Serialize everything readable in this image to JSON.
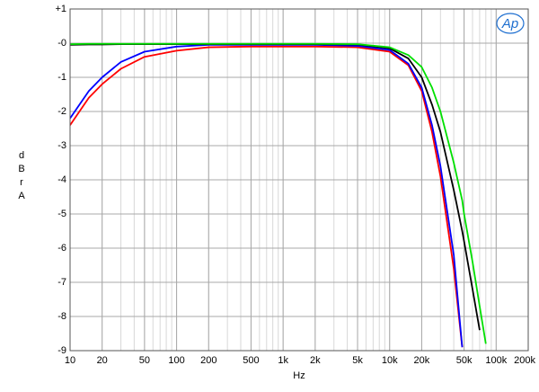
{
  "chart_data": {
    "type": "line",
    "logo": "Ap",
    "xlabel": "Hz",
    "ylabel": "dBr A",
    "xscale": "log",
    "grid": true,
    "xlim": [
      10,
      200000
    ],
    "ylim": [
      -9,
      1
    ],
    "xticks": [
      10,
      20,
      50,
      100,
      200,
      500,
      {
        "value": 1000,
        "label": "1k"
      },
      {
        "value": 2000,
        "label": "2k"
      },
      {
        "value": 5000,
        "label": "5k"
      },
      {
        "value": 10000,
        "label": "10k"
      },
      {
        "value": 20000,
        "label": "20k"
      },
      {
        "value": 50000,
        "label": "50k"
      },
      {
        "value": 100000,
        "label": "100k"
      },
      {
        "value": 200000,
        "label": "200k"
      }
    ],
    "yticks": [
      {
        "value": 1,
        "label": "+1"
      },
      {
        "value": 0,
        "label": "-0"
      },
      -1,
      -2,
      -3,
      -4,
      -5,
      -6,
      -7,
      -8,
      -9
    ],
    "x": [
      10,
      15,
      20,
      30,
      50,
      100,
      200,
      500,
      1000,
      2000,
      5000,
      10000,
      15000,
      20000,
      25000,
      30000,
      40000,
      48000,
      50000,
      60000,
      70000,
      80000
    ],
    "series": [
      {
        "color": "#ff0000",
        "values": [
          -2.4,
          -1.6,
          -1.2,
          -0.75,
          -0.4,
          -0.22,
          -0.12,
          -0.1,
          -0.1,
          -0.1,
          -0.12,
          -0.25,
          -0.65,
          -1.4,
          -2.6,
          -3.9,
          -6.6,
          -8.9,
          null,
          null,
          null,
          null
        ]
      },
      {
        "color": "#0000ff",
        "values": [
          -2.2,
          -1.4,
          -1.0,
          -0.55,
          -0.25,
          -0.1,
          -0.05,
          -0.05,
          -0.05,
          -0.05,
          -0.08,
          -0.2,
          -0.6,
          -1.3,
          -2.4,
          -3.6,
          -6.2,
          -8.9,
          null,
          null,
          null,
          null
        ]
      },
      {
        "color": "#000000",
        "values": [
          -0.05,
          -0.04,
          -0.04,
          -0.03,
          -0.03,
          -0.03,
          -0.03,
          -0.03,
          -0.03,
          -0.03,
          -0.04,
          -0.15,
          -0.45,
          -1.0,
          -1.8,
          -2.6,
          -4.3,
          -5.5,
          -5.8,
          -7.2,
          -8.4,
          null
        ]
      },
      {
        "color": "#00e000",
        "values": [
          -0.03,
          -0.02,
          -0.02,
          -0.02,
          -0.02,
          -0.02,
          -0.02,
          -0.02,
          -0.02,
          -0.02,
          -0.03,
          -0.12,
          -0.35,
          -0.7,
          -1.3,
          -2.0,
          -3.5,
          -4.6,
          -5.0,
          -6.4,
          -7.7,
          -8.8
        ]
      }
    ]
  }
}
